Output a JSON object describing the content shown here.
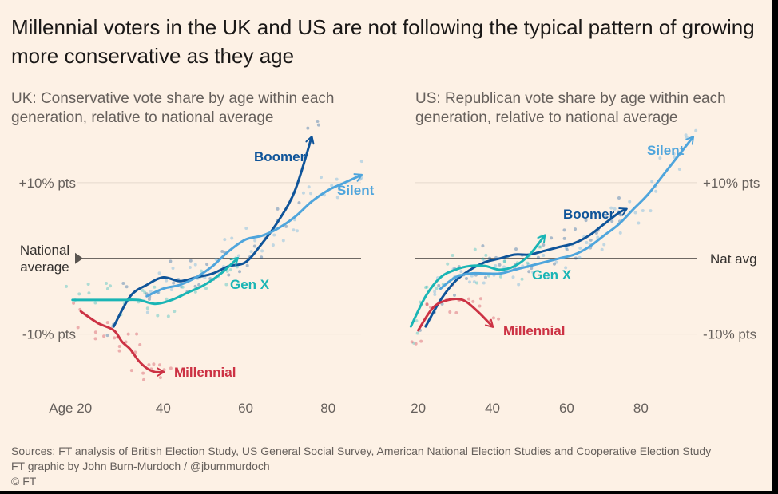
{
  "title": "Millennial voters in the UK and US are not following the typical pattern of growing more conservative as they age",
  "sources": {
    "line1": "Sources: FT analysis of British Election Study, US General Social Survey, American National Election Studies and Cooperative Election Study",
    "line2": "FT graphic by John Burn-Murdoch / @jburnmurdoch",
    "line3": "© FT"
  },
  "colors": {
    "background": "#fdf1e5",
    "boomer": "#0f5499",
    "silent": "#4fa5dc",
    "genx": "#1ab5b5",
    "millennial": "#cc3244",
    "national_line": "#5a5550",
    "grid": "#e6d9ce"
  },
  "chart_data": [
    {
      "type": "line",
      "title": "UK: Conservative vote share by age within each generation, relative to national average",
      "xlabel": "",
      "ylabel": "",
      "x_ticks": [
        20,
        40,
        60,
        80
      ],
      "x_tick_labels": [
        "Age 20",
        "40",
        "60",
        "80"
      ],
      "xlim": [
        19,
        88
      ],
      "y_ticks": [
        10,
        -10
      ],
      "y_tick_labels": [
        "+10% pts",
        "-10% pts"
      ],
      "ylim": [
        -19,
        16
      ],
      "reference_line": {
        "value": 0,
        "label": "National average"
      },
      "series": [
        {
          "name": "Boomer",
          "color_key": "boomer",
          "x": [
            28,
            32,
            36,
            40,
            44,
            48,
            52,
            56,
            60,
            64,
            68,
            72,
            76
          ],
          "y": [
            -9,
            -5,
            -3.5,
            -2.5,
            -3,
            -2.5,
            -2,
            -1,
            -0.5,
            2,
            5,
            9,
            16
          ]
        },
        {
          "name": "Silent",
          "color_key": "silent",
          "x": [
            36,
            40,
            44,
            48,
            52,
            56,
            60,
            64,
            68,
            72,
            76,
            80,
            84,
            88
          ],
          "y": [
            -5,
            -4,
            -3.5,
            -2.5,
            -1,
            1,
            2.5,
            3,
            4,
            5.5,
            7.5,
            9,
            10,
            11
          ]
        },
        {
          "name": "Gen X",
          "color_key": "genx",
          "x": [
            18,
            22,
            26,
            30,
            34,
            38,
            42,
            46,
            50,
            54,
            58
          ],
          "y": [
            -5.5,
            -5.5,
            -5.5,
            -5.5,
            -5.5,
            -6,
            -5.5,
            -4.5,
            -3.5,
            -2,
            0
          ]
        },
        {
          "name": "Millennial",
          "color_key": "millennial",
          "x": [
            20,
            24,
            28,
            30,
            32,
            34,
            36,
            38,
            40
          ],
          "y": [
            -7,
            -8.5,
            -9.5,
            -11,
            -12,
            -13.5,
            -14.5,
            -15,
            -15
          ]
        }
      ]
    },
    {
      "type": "line",
      "title": "US: Republican vote share by age within each generation, relative to national average",
      "xlabel": "",
      "ylabel": "",
      "x_ticks": [
        20,
        40,
        60,
        80
      ],
      "x_tick_labels": [
        "20",
        "40",
        "60",
        "80"
      ],
      "xlim": [
        19,
        95
      ],
      "y_ticks": [
        10,
        -10
      ],
      "y_tick_labels": [
        "+10% pts",
        "-10% pts"
      ],
      "ylim": [
        -19,
        16
      ],
      "reference_line": {
        "value": 0,
        "label": "Nat avg"
      },
      "series": [
        {
          "name": "Boomer",
          "color_key": "boomer",
          "x": [
            22,
            26,
            30,
            34,
            38,
            42,
            46,
            50,
            54,
            58,
            62,
            66,
            70,
            74,
            76
          ],
          "y": [
            -9,
            -5.5,
            -3,
            -1.5,
            -0.5,
            0,
            0.5,
            0.5,
            1,
            1.5,
            2,
            3,
            4.5,
            6,
            6.5
          ]
        },
        {
          "name": "Silent",
          "color_key": "silent",
          "x": [
            26,
            30,
            34,
            38,
            42,
            46,
            50,
            54,
            58,
            62,
            66,
            70,
            74,
            78,
            82,
            86,
            90,
            94
          ],
          "y": [
            -4,
            -2.5,
            -2,
            -2,
            -2,
            -1.5,
            -1,
            -0.5,
            0,
            0.5,
            1.5,
            3,
            4.5,
            6.5,
            8.5,
            11,
            13.5,
            16
          ]
        },
        {
          "name": "Gen X",
          "color_key": "genx",
          "x": [
            18,
            22,
            26,
            30,
            34,
            38,
            42,
            46,
            50,
            54
          ],
          "y": [
            -9,
            -5,
            -2.5,
            -1.5,
            -1,
            -1,
            -1.5,
            -1,
            0.5,
            3
          ]
        },
        {
          "name": "Millennial",
          "color_key": "millennial",
          "x": [
            20,
            24,
            28,
            32,
            36,
            40
          ],
          "y": [
            -9.5,
            -6.5,
            -5.5,
            -5.5,
            -7,
            -9
          ]
        }
      ]
    }
  ]
}
